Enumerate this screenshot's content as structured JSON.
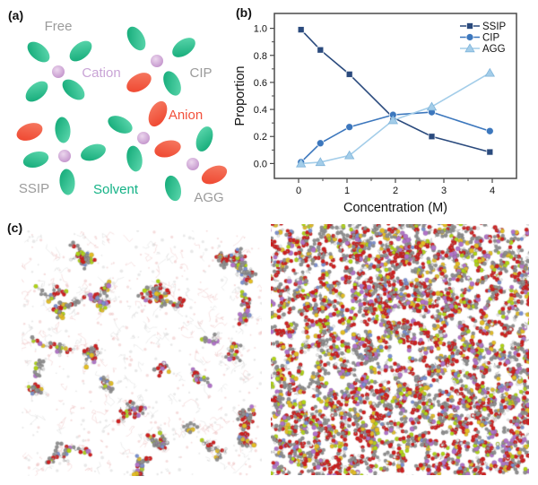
{
  "panels": {
    "a": {
      "label": "(a)",
      "labels": {
        "free": {
          "text": "Free",
          "color": "#9b9b9b"
        },
        "cation": {
          "text": "Cation",
          "color": "#c9a4d6"
        },
        "cip": {
          "text": "CIP",
          "color": "#9b9b9b"
        },
        "anion": {
          "text": "Anion",
          "color": "#f2503b"
        },
        "ssip": {
          "text": "SSIP",
          "color": "#9b9b9b"
        },
        "solvent": {
          "text": "Solvent",
          "color": "#14b286"
        },
        "agg": {
          "text": "AGG",
          "color": "#9b9b9b"
        }
      },
      "shape_colors": {
        "solvent_dark": "#0ca673",
        "solvent_light": "#63dbb2",
        "anion_dark": "#ee4029",
        "anion_light": "#f67f67",
        "cation_light": "#ecd7ee",
        "cation_dark": "#c08fc9"
      }
    },
    "b": {
      "label": "(b)"
    },
    "c": {
      "label": "(c)",
      "left_box_name": "dilute electrolyte snapshot",
      "right_box_name": "concentrated electrolyte snapshot",
      "atom_colors": {
        "carbon": "#8f8f8f",
        "oxygen": "#d01f1f",
        "sulfur": "#e3bd24",
        "fluorine": "#b0d413",
        "phosphorus": "#b173c9",
        "nitrogen": "#7a90d2",
        "hydrogen": "#ececec",
        "bond": "#9a9a9a",
        "faint_pink": "rgba(235,185,185,0.5)",
        "faint_gray": "rgba(214,214,214,0.55)"
      },
      "weights_dilute": {
        "carbon": 34,
        "oxygen": 22,
        "hydrogen": 16,
        "fluorine": 8,
        "sulfur": 7,
        "phosphorus": 7,
        "nitrogen": 6
      },
      "weights_dense": {
        "carbon": 30,
        "oxygen": 30,
        "hydrogen": 12,
        "fluorine": 8,
        "sulfur": 8,
        "phosphorus": 8,
        "nitrogen": 4
      }
    }
  },
  "chart_data": {
    "type": "line",
    "title": "",
    "xlabel": "Concentration (M)",
    "ylabel": "Proportion",
    "x": [
      0.05,
      0.45,
      1.05,
      1.95,
      2.75,
      3.95
    ],
    "series": [
      {
        "name": "SSIP",
        "marker": "square",
        "color": "#2a4a7d",
        "marker_stroke": "rgba(255,255,255,0.85)",
        "values": [
          0.99,
          0.84,
          0.66,
          0.34,
          0.2,
          0.085
        ]
      },
      {
        "name": "CIP",
        "marker": "circle",
        "color": "#3c77bd",
        "marker_stroke": "rgba(255,255,255,0.85)",
        "values": [
          0.01,
          0.15,
          0.27,
          0.36,
          0.38,
          0.24
        ]
      },
      {
        "name": "AGG",
        "marker": "triangle",
        "color": "#a3cde9",
        "marker_stroke": "#7fb4da",
        "values": [
          0.0,
          0.01,
          0.06,
          0.32,
          0.42,
          0.67
        ]
      }
    ],
    "xlim": [
      -0.5,
      4.5
    ],
    "ylim": [
      -0.11,
      1.11
    ],
    "xticks": [
      0,
      1,
      2,
      3,
      4
    ],
    "yticks": [
      0.0,
      0.2,
      0.4,
      0.6,
      0.8,
      1.0
    ],
    "minor_ticks": true,
    "grid": false,
    "frame_color": "#4a4a4a",
    "tick_label_color": "#111111",
    "legend_position": "top-right"
  }
}
